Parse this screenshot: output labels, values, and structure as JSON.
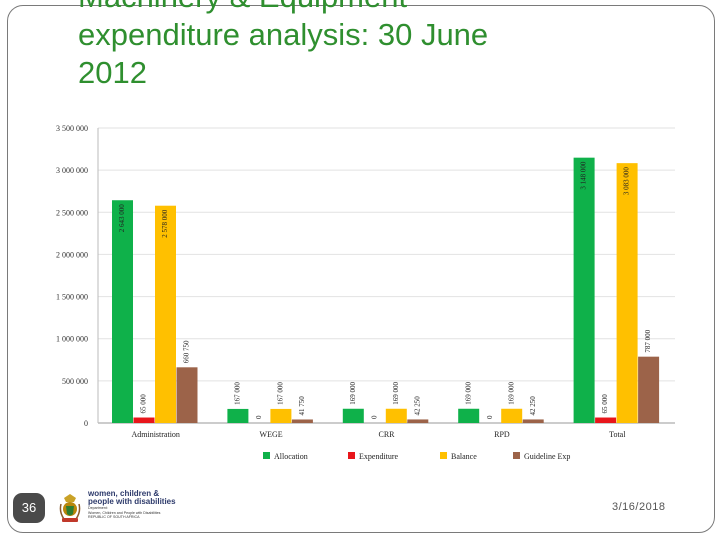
{
  "slide": {
    "title_lines": [
      "Machinery & Equipment",
      "expenditure analysis: 30 June",
      "2012"
    ],
    "page_number": "36",
    "date": "3/16/2018",
    "org": {
      "line1": "women, children &",
      "line2": "people with disabilities",
      "dept_lines": [
        "Department:",
        "Women, Children and People with Disabilities",
        "REPUBLIC OF SOUTH AFRICA"
      ]
    }
  },
  "colors": {
    "title": "#2f8f2f",
    "allocation": "#0fb14a",
    "expenditure": "#e8161b",
    "balance": "#ffc000",
    "guideline": "#9c6349"
  },
  "chart_data": {
    "type": "bar",
    "title": "",
    "xlabel": "",
    "ylabel": "",
    "ylim": [
      0,
      3500000
    ],
    "ytick_values": [
      0,
      500000,
      1000000,
      1500000,
      2000000,
      2500000,
      3000000,
      3500000
    ],
    "ytick_labels": [
      "0",
      "500 000",
      "1 000 000",
      "1 500 000",
      "2 000 000",
      "2 500 000",
      "3 000 000",
      "3 500 000"
    ],
    "grid": true,
    "legend_position": "bottom",
    "categories": [
      "Administration",
      "WEGE",
      "CRR",
      "RPD",
      "Total"
    ],
    "series": [
      {
        "name": "Allocation",
        "color": "#0fb14a",
        "values": [
          2643000,
          167000,
          169000,
          169000,
          3148000
        ],
        "labels": [
          "2 643 000",
          "167 000",
          "169 000",
          "169 000",
          "3 148 000"
        ]
      },
      {
        "name": "Expenditure",
        "color": "#e8161b",
        "values": [
          65000,
          0,
          0,
          0,
          65000
        ],
        "labels": [
          "65 000",
          "0",
          "0",
          "0",
          "65 000"
        ]
      },
      {
        "name": "Balance",
        "color": "#ffc000",
        "values": [
          2578000,
          167000,
          169000,
          169000,
          3083000
        ],
        "labels": [
          "2 578 000",
          "167 000",
          "169 000",
          "169 000",
          "3 083 000"
        ]
      },
      {
        "name": "Guideline Exp",
        "color": "#9c6349",
        "values": [
          660750,
          41750,
          42250,
          42250,
          787000
        ],
        "labels": [
          "660 750",
          "41 750",
          "42 250",
          "42 250",
          "787 000"
        ]
      }
    ]
  }
}
